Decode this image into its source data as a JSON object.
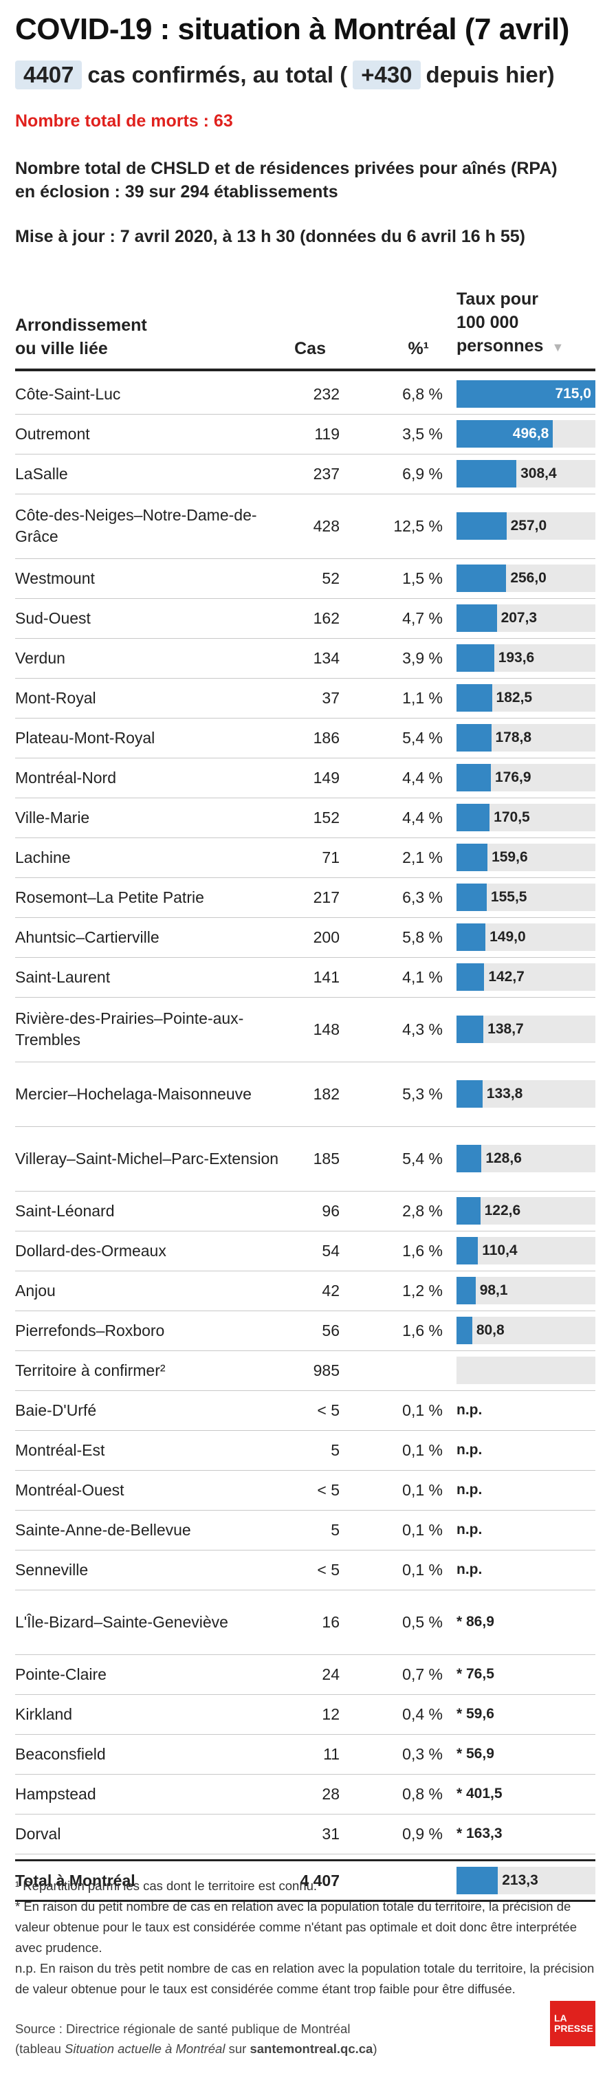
{
  "header": {
    "title": "COVID-19 : situation à Montréal (7 avril)",
    "cases_total": "4407",
    "cases_text": "cas confirmés, au total (",
    "cases_delta": "+430",
    "cases_suffix": "depuis hier)",
    "deaths": "Nombre total de morts : 63",
    "chsld_line1": "Nombre total de CHSLD et de résidences privées pour aînés (RPA)",
    "chsld_line2": "en éclosion : 39 sur 294 établissements",
    "update": "Mise à jour : 7 avril 2020, à 13 h 30 (données du 6 avril 16 h 55)"
  },
  "table": {
    "headers": {
      "area_line1": "Arrondissement",
      "area_line2": "ou ville liée",
      "cases": "Cas",
      "pct": "%¹",
      "rate_line1": "Taux pour",
      "rate_line2": "100 000",
      "rate_line3": "personnes",
      "sort_icon": "▼"
    },
    "max_rate": 715.0,
    "bar_color": "#3487c4",
    "rows": [
      {
        "name": "Côte-Saint-Luc",
        "cases": "232",
        "pct": "6,8 %",
        "rate": 715.0,
        "rate_label": "715,0"
      },
      {
        "name": "Outremont",
        "cases": "119",
        "pct": "3,5 %",
        "rate": 496.8,
        "rate_label": "496,8"
      },
      {
        "name": "LaSalle",
        "cases": "237",
        "pct": "6,9 %",
        "rate": 308.4,
        "rate_label": "308,4"
      },
      {
        "name": "Côte-des-Neiges–Notre-Dame-de-Grâce",
        "cases": "428",
        "pct": "12,5 %",
        "rate": 257.0,
        "rate_label": "257,0"
      },
      {
        "name": "Westmount",
        "cases": "52",
        "pct": "1,5 %",
        "rate": 256.0,
        "rate_label": "256,0"
      },
      {
        "name": "Sud-Ouest",
        "cases": "162",
        "pct": "4,7 %",
        "rate": 207.3,
        "rate_label": "207,3"
      },
      {
        "name": "Verdun",
        "cases": "134",
        "pct": "3,9 %",
        "rate": 193.6,
        "rate_label": "193,6"
      },
      {
        "name": "Mont-Royal",
        "cases": "37",
        "pct": "1,1 %",
        "rate": 182.5,
        "rate_label": "182,5"
      },
      {
        "name": "Plateau-Mont-Royal",
        "cases": "186",
        "pct": "5,4 %",
        "rate": 178.8,
        "rate_label": "178,8"
      },
      {
        "name": "Montréal-Nord",
        "cases": "149",
        "pct": "4,4 %",
        "rate": 176.9,
        "rate_label": "176,9"
      },
      {
        "name": "Ville-Marie",
        "cases": "152",
        "pct": "4,4 %",
        "rate": 170.5,
        "rate_label": "170,5"
      },
      {
        "name": "Lachine",
        "cases": "71",
        "pct": "2,1 %",
        "rate": 159.6,
        "rate_label": "159,6"
      },
      {
        "name": "Rosemont–La Petite Patrie",
        "cases": "217",
        "pct": "6,3 %",
        "rate": 155.5,
        "rate_label": "155,5"
      },
      {
        "name": "Ahuntsic–Cartierville",
        "cases": "200",
        "pct": "5,8 %",
        "rate": 149.0,
        "rate_label": "149,0"
      },
      {
        "name": "Saint-Laurent",
        "cases": "141",
        "pct": "4,1 %",
        "rate": 142.7,
        "rate_label": "142,7"
      },
      {
        "name": "Rivière-des-Prairies–Pointe-aux-Trembles",
        "cases": "148",
        "pct": "4,3 %",
        "rate": 138.7,
        "rate_label": "138,7"
      },
      {
        "name": "Mercier–Hochelaga-Maisonneuve",
        "cases": "182",
        "pct": "5,3 %",
        "rate": 133.8,
        "rate_label": "133,8"
      },
      {
        "name": "Villeray–Saint-Michel–Parc-Extension",
        "cases": "185",
        "pct": "5,4 %",
        "rate": 128.6,
        "rate_label": "128,6"
      },
      {
        "name": "Saint-Léonard",
        "cases": "96",
        "pct": "2,8 %",
        "rate": 122.6,
        "rate_label": "122,6"
      },
      {
        "name": "Dollard-des-Ormeaux",
        "cases": "54",
        "pct": "1,6 %",
        "rate": 110.4,
        "rate_label": "110,4"
      },
      {
        "name": "Anjou",
        "cases": "42",
        "pct": "1,2 %",
        "rate": 98.1,
        "rate_label": "98,1"
      },
      {
        "name": "Pierrefonds–Roxboro",
        "cases": "56",
        "pct": "1,6 %",
        "rate": 80.8,
        "rate_label": "80,8"
      },
      {
        "name": "Territoire à confirmer²",
        "cases": "985",
        "pct": "",
        "rate": 0,
        "rate_label": ""
      },
      {
        "name": "Baie-D'Urfé",
        "cases": "< 5",
        "pct": "0,1 %",
        "rate_label": "n.p."
      },
      {
        "name": "Montréal-Est",
        "cases": "5",
        "pct": "0,1 %",
        "rate_label": "n.p."
      },
      {
        "name": "Montréal-Ouest",
        "cases": "< 5",
        "pct": "0,1 %",
        "rate_label": "n.p."
      },
      {
        "name": "Sainte-Anne-de-Bellevue",
        "cases": "5",
        "pct": "0,1 %",
        "rate_label": "n.p."
      },
      {
        "name": "Senneville",
        "cases": "< 5",
        "pct": "0,1 %",
        "rate_label": "n.p."
      },
      {
        "name": "L'Île-Bizard–Sainte-Geneviève",
        "cases": "16",
        "pct": "0,5 %",
        "rate_label": "* 86,9"
      },
      {
        "name": "Pointe-Claire",
        "cases": "24",
        "pct": "0,7 %",
        "rate_label": "* 76,5"
      },
      {
        "name": "Kirkland",
        "cases": "12",
        "pct": "0,4 %",
        "rate_label": "* 59,6"
      },
      {
        "name": "Beaconsfield",
        "cases": "11",
        "pct": "0,3 %",
        "rate_label": "* 56,9"
      },
      {
        "name": "Hampstead",
        "cases": "28",
        "pct": "0,8 %",
        "rate_label": "* 401,5"
      },
      {
        "name": "Dorval",
        "cases": "31",
        "pct": "0,9 %",
        "rate_label": "* 163,3"
      }
    ],
    "total": {
      "name": "Total à Montréal",
      "cases": "4 407",
      "pct": "",
      "rate": 213.3,
      "rate_label": "213,3"
    }
  },
  "notes": {
    "n1": "¹ Répartition parmi les cas dont le territoire est connu.",
    "n2": "* En raison du petit nombre de cas en relation avec la population totale du territoire, la précision de valeur obtenue pour le taux est considérée comme n'étant pas optimale et doit donc être interprétée avec prudence.",
    "n3": "n.p. En raison du très petit nombre de cas en relation avec la population totale du territoire, la précision de valeur obtenue pour le taux est considérée comme étant trop faible pour être diffusée."
  },
  "source": {
    "line1": "Source : Directrice régionale de santé publique de Montréal",
    "line2_prefix": "(tableau ",
    "line2_italic": "Situation actuelle à Montréal",
    "line2_mid": " sur ",
    "line2_site": "santemontreal.qc.ca",
    "line2_suffix": ")"
  },
  "logo": {
    "line1": "LA",
    "line2": "PRESSE"
  }
}
